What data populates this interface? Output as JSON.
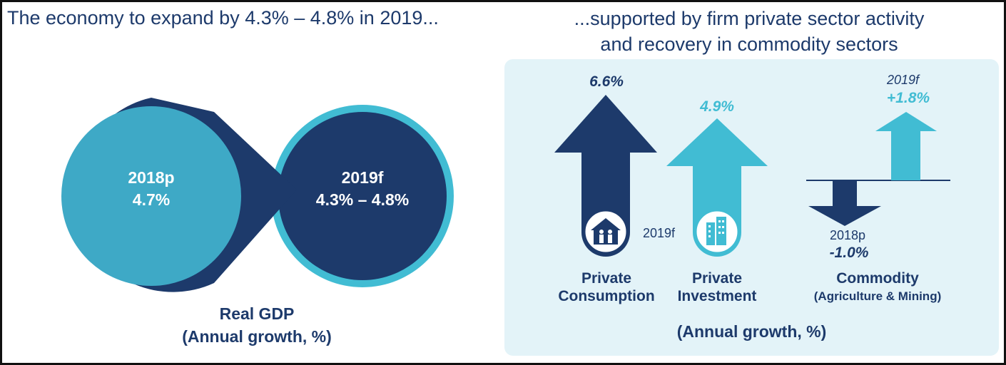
{
  "left_title": "The economy to expand by 4.3% – 4.8% in 2019...",
  "right_title_line1": "...supported by firm private sector activity",
  "right_title_line2": "and recovery in commodity sectors",
  "colors": {
    "dark_navy": "#1d3a6b",
    "light_teal": "#3ea9c6",
    "bright_teal": "#41bcd3",
    "panel_bg": "#e3f3f8"
  },
  "gdp": {
    "label_2018": "2018p",
    "value_2018": "4.7%",
    "label_2019": "2019f",
    "value_2019": "4.3% – 4.8%",
    "caption_line1": "Real GDP",
    "caption_line2": "(Annual growth, %)"
  },
  "chart_data": {
    "type": "bar",
    "title": "",
    "ylabel": "(Annual growth, %)",
    "categories": [
      "Private Consumption",
      "Private Investment",
      "Commodity (Agriculture & Mining)"
    ],
    "series": [
      {
        "name": "2019f",
        "points": [
          {
            "category": "Private Consumption",
            "value": 6.6
          },
          {
            "category": "Private Investment",
            "value": 4.9
          },
          {
            "category": "Commodity (Agriculture & Mining)",
            "value": 1.8
          }
        ]
      },
      {
        "name": "2018p",
        "points": [
          {
            "category": "Commodity (Agriculture & Mining)",
            "value": -1.0
          }
        ]
      }
    ]
  },
  "right": {
    "consumption_value": "6.6%",
    "investment_value": "4.9%",
    "year_note": "2019f",
    "commodity_2019_year": "2019f",
    "commodity_2019_value": "+1.8%",
    "commodity_2018_year": "2018p",
    "commodity_2018_value": "-1.0%",
    "label_consumption_1": "Private",
    "label_consumption_2": "Consumption",
    "label_investment_1": "Private",
    "label_investment_2": "Investment",
    "label_commodity_1": "Commodity",
    "label_commodity_2": "(Agriculture & Mining)",
    "caption": "(Annual growth, %)",
    "icon_house": "house-family-icon",
    "icon_building": "building-icon"
  }
}
